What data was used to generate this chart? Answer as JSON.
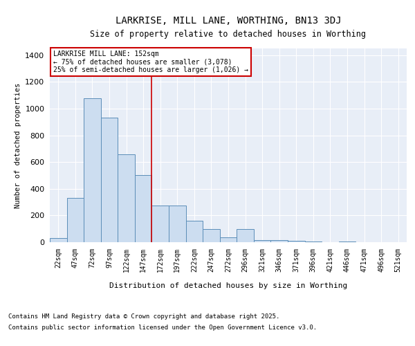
{
  "title": "LARKRISE, MILL LANE, WORTHING, BN13 3DJ",
  "subtitle": "Size of property relative to detached houses in Worthing",
  "xlabel": "Distribution of detached houses by size in Worthing",
  "ylabel": "Number of detached properties",
  "bar_labels": [
    "22sqm",
    "47sqm",
    "72sqm",
    "97sqm",
    "122sqm",
    "147sqm",
    "172sqm",
    "197sqm",
    "222sqm",
    "247sqm",
    "272sqm",
    "296sqm",
    "321sqm",
    "346sqm",
    "371sqm",
    "396sqm",
    "421sqm",
    "446sqm",
    "471sqm",
    "496sqm",
    "521sqm"
  ],
  "bar_values": [
    30,
    330,
    1075,
    930,
    660,
    500,
    275,
    275,
    160,
    100,
    35,
    100,
    15,
    15,
    10,
    5,
    0,
    5,
    0,
    0,
    0
  ],
  "bar_color": "#ccddf0",
  "bar_edge_color": "#5b8db8",
  "vline_x": 5.5,
  "vline_color": "#cc0000",
  "annotation_title": "LARKRISE MILL LANE: 152sqm",
  "annotation_line1": "← 75% of detached houses are smaller (3,078)",
  "annotation_line2": "25% of semi-detached houses are larger (1,026) →",
  "annotation_box_color": "#cc0000",
  "ylim": [
    0,
    1450
  ],
  "yticks": [
    0,
    200,
    400,
    600,
    800,
    1000,
    1200,
    1400
  ],
  "footnote1": "Contains HM Land Registry data © Crown copyright and database right 2025.",
  "footnote2": "Contains public sector information licensed under the Open Government Licence v3.0.",
  "background_color": "#e8eef7",
  "grid_color": "#ffffff",
  "fig_bg_color": "#ffffff"
}
